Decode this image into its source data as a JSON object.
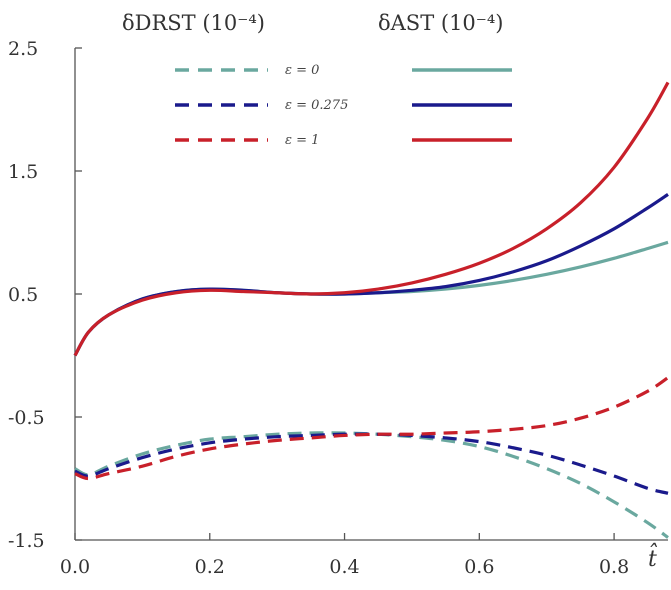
{
  "chart_data": {
    "type": "line",
    "header": {
      "dashed_title": "δDRST (10⁻⁴)",
      "solid_title": "δAST (10⁻⁴)"
    },
    "xlabel": "t̂",
    "ylabel": "",
    "xlim": [
      0.0,
      0.88
    ],
    "ylim": [
      -1.5,
      2.5
    ],
    "x_ticks": [
      "0.0",
      "0.2",
      "0.4",
      "0.6",
      "0.8"
    ],
    "y_ticks": [
      "2.5",
      "1.5",
      "0.5",
      "-0.5",
      "-1.5"
    ],
    "grid": false,
    "legend_placement": "top-center",
    "legend_labels": [
      "ε = 0",
      "ε = 0.275",
      "ε = 1"
    ],
    "colors": {
      "eps0": "#6aa89f",
      "eps0275": "#1a1a8c",
      "eps1": "#c8202a",
      "axis": "#555555"
    },
    "x": [
      0.0,
      0.02,
      0.05,
      0.1,
      0.15,
      0.2,
      0.25,
      0.3,
      0.35,
      0.4,
      0.45,
      0.5,
      0.55,
      0.6,
      0.65,
      0.7,
      0.75,
      0.8,
      0.85,
      0.88
    ],
    "series": [
      {
        "name": "ε = 0",
        "group": "δAST",
        "style": "solid",
        "color_key": "eps0",
        "values": [
          0.0,
          0.19,
          0.33,
          0.46,
          0.52,
          0.54,
          0.53,
          0.51,
          0.5,
          0.5,
          0.51,
          0.52,
          0.54,
          0.57,
          0.61,
          0.66,
          0.72,
          0.79,
          0.87,
          0.92
        ]
      },
      {
        "name": "ε = 0.275",
        "group": "δAST",
        "style": "solid",
        "color_key": "eps0275",
        "values": [
          0.0,
          0.19,
          0.33,
          0.46,
          0.52,
          0.54,
          0.53,
          0.51,
          0.5,
          0.5,
          0.51,
          0.53,
          0.56,
          0.61,
          0.68,
          0.77,
          0.89,
          1.03,
          1.2,
          1.31
        ]
      },
      {
        "name": "ε = 1",
        "group": "δAST",
        "style": "solid",
        "color_key": "eps1",
        "values": [
          0.0,
          0.19,
          0.33,
          0.45,
          0.51,
          0.53,
          0.52,
          0.51,
          0.5,
          0.51,
          0.54,
          0.59,
          0.66,
          0.75,
          0.87,
          1.03,
          1.24,
          1.53,
          1.93,
          2.22
        ]
      },
      {
        "name": "ε = 0",
        "group": "δDRST",
        "style": "dashed",
        "color_key": "eps0",
        "values": [
          -0.92,
          -0.97,
          -0.9,
          -0.8,
          -0.73,
          -0.68,
          -0.66,
          -0.64,
          -0.63,
          -0.63,
          -0.64,
          -0.66,
          -0.69,
          -0.74,
          -0.82,
          -0.92,
          -1.04,
          -1.19,
          -1.36,
          -1.48
        ]
      },
      {
        "name": "ε = 0.275",
        "group": "δDRST",
        "style": "dashed",
        "color_key": "eps0275",
        "values": [
          -0.94,
          -0.98,
          -0.92,
          -0.83,
          -0.76,
          -0.71,
          -0.68,
          -0.66,
          -0.65,
          -0.64,
          -0.64,
          -0.65,
          -0.67,
          -0.7,
          -0.75,
          -0.81,
          -0.89,
          -0.98,
          -1.08,
          -1.12
        ]
      },
      {
        "name": "ε = 1",
        "group": "δDRST",
        "style": "dashed",
        "color_key": "eps1",
        "values": [
          -0.96,
          -1.0,
          -0.96,
          -0.9,
          -0.82,
          -0.76,
          -0.72,
          -0.69,
          -0.67,
          -0.65,
          -0.64,
          -0.64,
          -0.63,
          -0.62,
          -0.6,
          -0.57,
          -0.51,
          -0.42,
          -0.29,
          -0.18
        ]
      }
    ]
  }
}
